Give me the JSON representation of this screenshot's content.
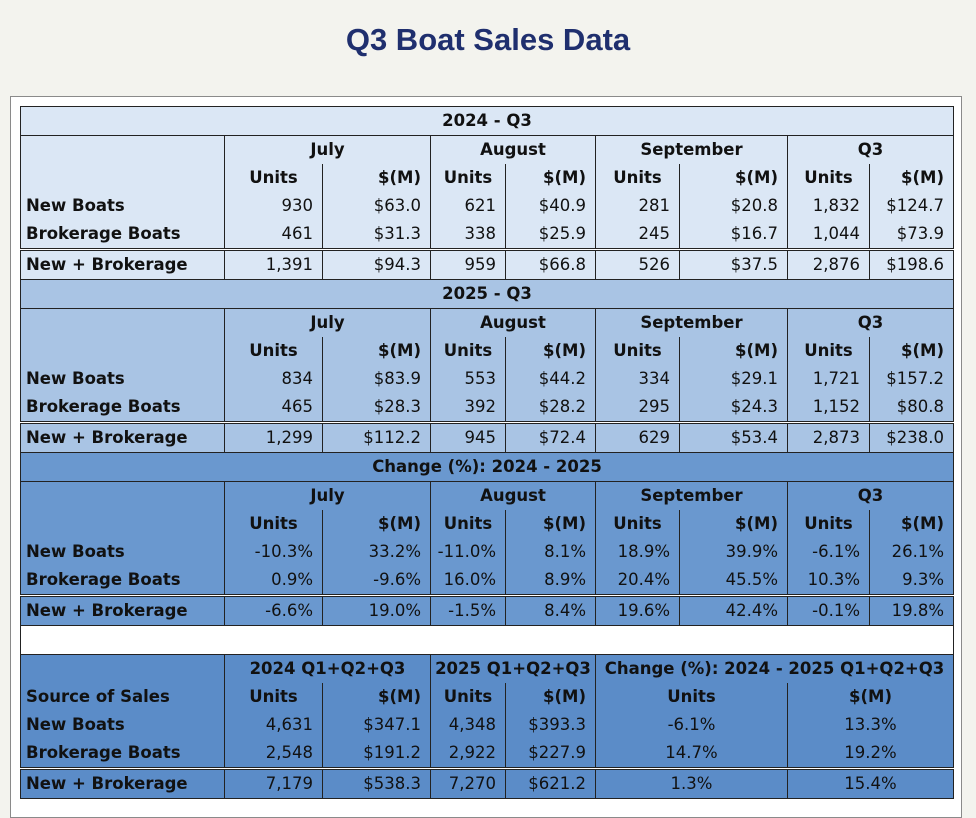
{
  "title": "Q3 Boat Sales Data",
  "col_labels": {
    "units": "Units",
    "dollars": "$(M)"
  },
  "sections": [
    {
      "heading": "2024 - Q3",
      "periods": [
        "July",
        "August",
        "September",
        "Q3"
      ],
      "rows": [
        {
          "label": "New Boats",
          "values": [
            "930",
            "$63.0",
            "621",
            "$40.9",
            "281",
            "$20.8",
            "1,832",
            "$124.7"
          ]
        },
        {
          "label": "Brokerage Boats",
          "values": [
            "461",
            "$31.3",
            "338",
            "$25.9",
            "245",
            "$16.7",
            "1,044",
            "$73.9"
          ]
        },
        {
          "label": "New + Brokerage",
          "values": [
            "1,391",
            "$94.3",
            "959",
            "$66.8",
            "526",
            "$37.5",
            "2,876",
            "$198.6"
          ]
        }
      ]
    },
    {
      "heading": "2025 - Q3",
      "periods": [
        "July",
        "August",
        "September",
        "Q3"
      ],
      "rows": [
        {
          "label": "New Boats",
          "values": [
            "834",
            "$83.9",
            "553",
            "$44.2",
            "334",
            "$29.1",
            "1,721",
            "$157.2"
          ]
        },
        {
          "label": "Brokerage Boats",
          "values": [
            "465",
            "$28.3",
            "392",
            "$28.2",
            "295",
            "$24.3",
            "1,152",
            "$80.8"
          ]
        },
        {
          "label": "New + Brokerage",
          "values": [
            "1,299",
            "$112.2",
            "945",
            "$72.4",
            "629",
            "$53.4",
            "2,873",
            "$238.0"
          ]
        }
      ]
    },
    {
      "heading": "Change (%): 2024 - 2025",
      "periods": [
        "July",
        "August",
        "September",
        "Q3"
      ],
      "rows": [
        {
          "label": "New Boats",
          "values": [
            "-10.3%",
            "33.2%",
            "-11.0%",
            "8.1%",
            "18.9%",
            "39.9%",
            "-6.1%",
            "26.1%"
          ]
        },
        {
          "label": "Brokerage Boats",
          "values": [
            "0.9%",
            "-9.6%",
            "16.0%",
            "8.9%",
            "20.4%",
            "45.5%",
            "10.3%",
            "9.3%"
          ]
        },
        {
          "label": "New + Brokerage",
          "values": [
            "-6.6%",
            "19.0%",
            "-1.5%",
            "8.4%",
            "19.6%",
            "42.4%",
            "-0.1%",
            "19.8%"
          ]
        }
      ]
    }
  ],
  "ytd": {
    "groups": [
      "2024 Q1+Q2+Q3",
      "2025 Q1+Q2+Q3",
      "Change (%): 2024 - 2025 Q1+Q2+Q3"
    ],
    "row_header": "Source of Sales",
    "rows": [
      {
        "label": "New Boats",
        "values": [
          "4,631",
          "$347.1",
          "4,348",
          "$393.3",
          "-6.1%",
          "13.3%"
        ]
      },
      {
        "label": "Brokerage Boats",
        "values": [
          "2,548",
          "$191.2",
          "2,922",
          "$227.9",
          "14.7%",
          "19.2%"
        ]
      },
      {
        "label": "New + Brokerage",
        "values": [
          "7,179",
          "$538.3",
          "7,270",
          "$621.2",
          "1.3%",
          "15.4%"
        ]
      }
    ]
  }
}
